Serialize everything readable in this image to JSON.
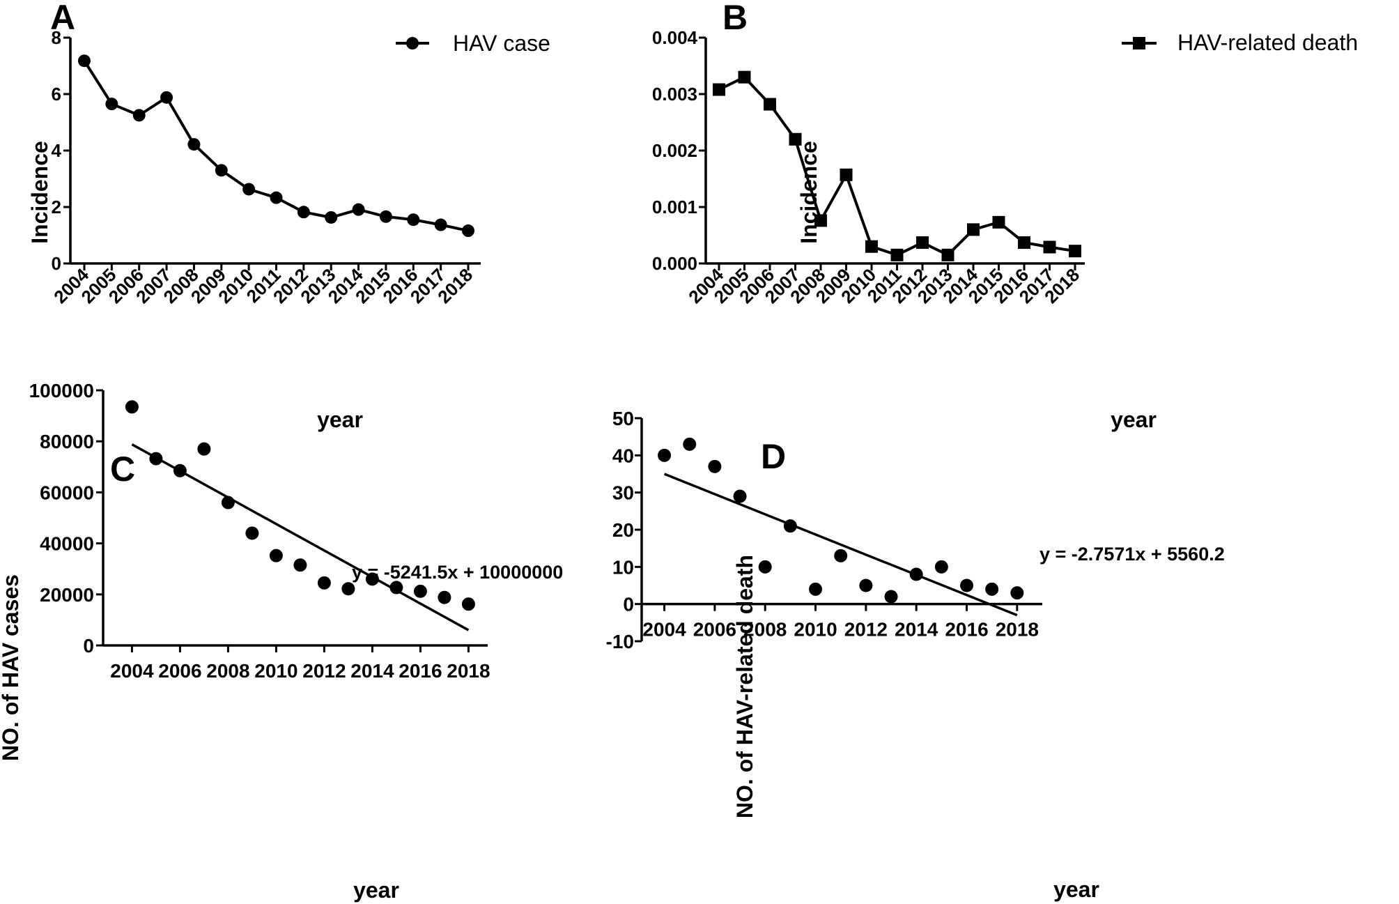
{
  "chart_data": [
    {
      "panel": "A",
      "type": "line",
      "marker": "circle",
      "categories": [
        "2004",
        "2005",
        "2006",
        "2007",
        "2008",
        "2009",
        "2010",
        "2011",
        "2012",
        "2013",
        "2014",
        "2015",
        "2016",
        "2017",
        "2018"
      ],
      "series": [
        {
          "name": "HAV case",
          "values": [
            7.18,
            5.65,
            5.25,
            5.88,
            4.22,
            3.3,
            2.63,
            2.33,
            1.82,
            1.63,
            1.91,
            1.66,
            1.55,
            1.37,
            1.16
          ]
        }
      ],
      "ylabel": "Incidence",
      "xlabel": "year",
      "ylim": [
        0,
        8
      ],
      "yticks": [
        "0",
        "2",
        "4",
        "6",
        "8"
      ],
      "legend": "top-right"
    },
    {
      "panel": "B",
      "type": "line",
      "marker": "square",
      "categories": [
        "2004",
        "2005",
        "2006",
        "2007",
        "2008",
        "2009",
        "2010",
        "2011",
        "2012",
        "2013",
        "2014",
        "2015",
        "2016",
        "2017",
        "2018"
      ],
      "series": [
        {
          "name": "HAV-related death",
          "values": [
            0.00308,
            0.0033,
            0.00282,
            0.0022,
            0.00076,
            0.00157,
            0.0003,
            0.00015,
            0.00037,
            0.00015,
            0.0006,
            0.00073,
            0.00037,
            0.00029,
            0.00022
          ]
        }
      ],
      "ylabel": "Incidence",
      "xlabel": "year",
      "ylim": [
        0,
        0.004
      ],
      "yticks": [
        "0.000",
        "0.001",
        "0.002",
        "0.003",
        "0.004"
      ],
      "legend": "top-right"
    },
    {
      "panel": "C",
      "type": "scatter",
      "x": [
        2004,
        2005,
        2006,
        2007,
        2008,
        2009,
        2010,
        2011,
        2012,
        2013,
        2014,
        2015,
        2016,
        2017,
        2018
      ],
      "y": [
        93500,
        73200,
        68500,
        77000,
        56000,
        44000,
        35200,
        31500,
        24500,
        22200,
        26000,
        22700,
        21200,
        18800,
        16200
      ],
      "trendline": {
        "x": [
          2004,
          2018
        ],
        "y": [
          78800,
          6000
        ]
      },
      "equation": "y = -5241.5x + 10000000",
      "ylabel": "NO. of HAV cases",
      "xlabel": "year",
      "xlim": [
        2002.8,
        2018.8
      ],
      "ylim": [
        0,
        100000
      ],
      "xticks": [
        "2004",
        "2006",
        "2008",
        "2010",
        "2012",
        "2014",
        "2016",
        "2018"
      ],
      "yticks": [
        "0",
        "20000",
        "40000",
        "60000",
        "80000",
        "100000"
      ]
    },
    {
      "panel": "D",
      "type": "scatter",
      "x": [
        2004,
        2005,
        2006,
        2007,
        2008,
        2009,
        2010,
        2011,
        2012,
        2013,
        2014,
        2015,
        2016,
        2017,
        2018
      ],
      "y": [
        40,
        43,
        37,
        29,
        10,
        21,
        4,
        13,
        5,
        2,
        8,
        10,
        5,
        4,
        3
      ],
      "trendline": {
        "x": [
          2004,
          2018
        ],
        "y": [
          35,
          -3
        ]
      },
      "equation": "y = -2.7571x + 5560.2",
      "ylabel": "NO. of HAV-related death",
      "xlabel": "year",
      "xlim": [
        2003.1,
        2019.0
      ],
      "ylim": [
        -10,
        50
      ],
      "xticks": [
        "2004",
        "2006",
        "2008",
        "2010",
        "2012",
        "2014",
        "2016",
        "2018"
      ],
      "yticks": [
        "-10",
        "0",
        "10",
        "20",
        "30",
        "40",
        "50"
      ]
    }
  ]
}
